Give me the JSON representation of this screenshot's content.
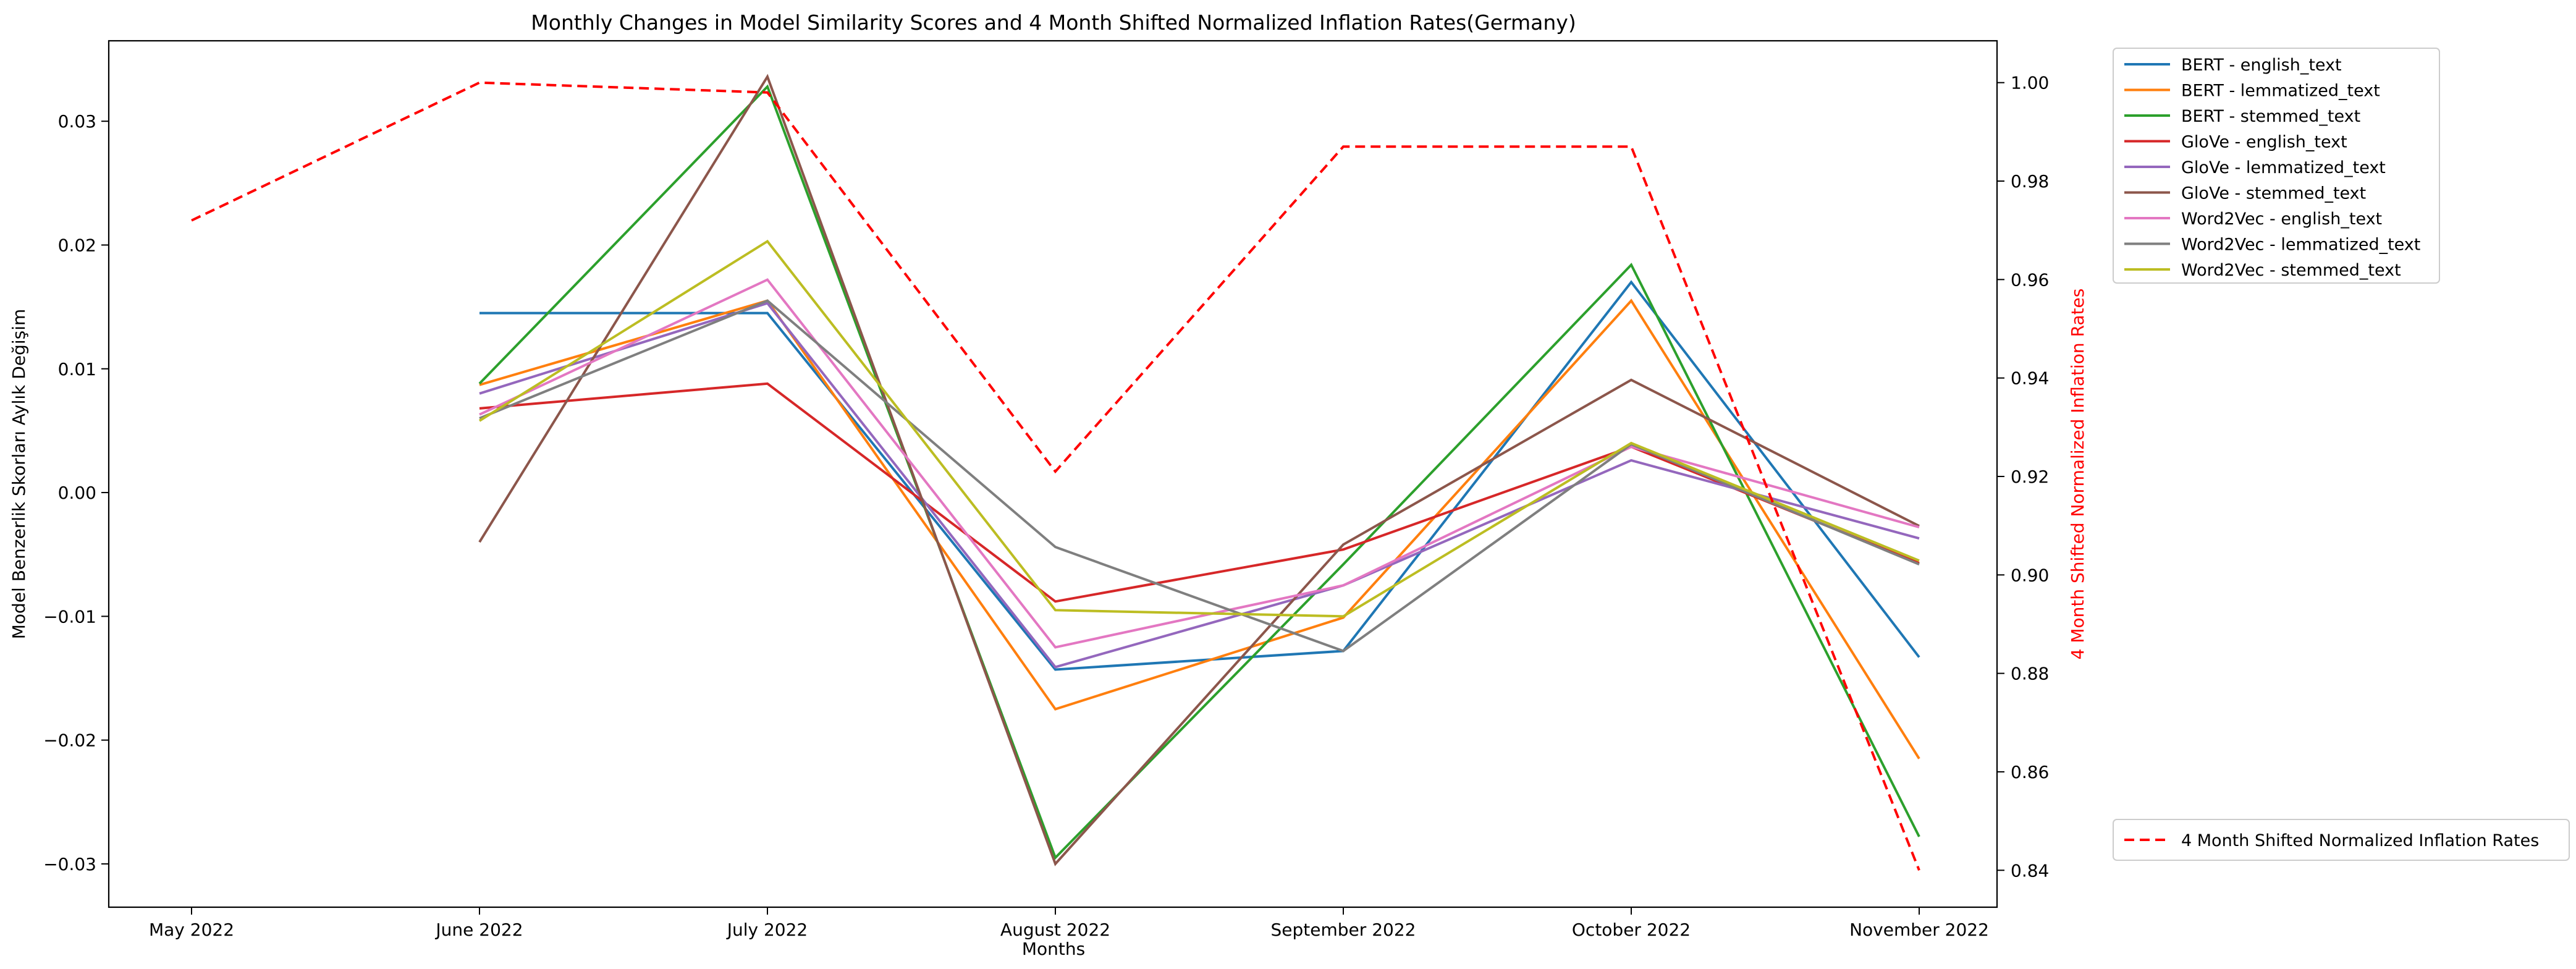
{
  "chart_data": {
    "type": "line",
    "title": "Monthly Changes in Model Similarity Scores and 4 Month Shifted Normalized Inflation Rates(Germany)",
    "xlabel": "Months",
    "ylabel": "Model Benzerlik Skorları Aylık Değişim",
    "ylabel2": "4 Month Shifted Normalized Inflation Rates",
    "categories": [
      "May 2022",
      "June 2022",
      "July 2022",
      "August 2022",
      "September 2022",
      "October 2022",
      "November 2022"
    ],
    "ylim": [
      -0.0335,
      0.0365
    ],
    "yticks": [
      -0.03,
      -0.02,
      -0.01,
      0.0,
      0.01,
      0.02,
      0.03
    ],
    "ytick_labels": [
      "−0.03",
      "−0.02",
      "−0.01",
      "0.00",
      "0.01",
      "0.02",
      "0.03"
    ],
    "y2lim": [
      0.8325,
      1.0085
    ],
    "y2ticks": [
      0.84,
      0.86,
      0.88,
      0.9,
      0.92,
      0.94,
      0.96,
      0.98,
      1.0
    ],
    "y2tick_labels": [
      "0.84",
      "0.86",
      "0.88",
      "0.90",
      "0.92",
      "0.94",
      "0.96",
      "0.98",
      "1.00"
    ],
    "series": [
      {
        "name": "BERT - english_text",
        "color": "#1f77b4",
        "values": [
          null,
          0.0145,
          0.0145,
          -0.0143,
          -0.0128,
          0.017,
          -0.0133
        ]
      },
      {
        "name": "BERT - lemmatized_text",
        "color": "#ff7f0e",
        "values": [
          null,
          0.0087,
          0.0155,
          -0.0175,
          -0.0101,
          0.0155,
          -0.0215
        ]
      },
      {
        "name": "BERT - stemmed_text",
        "color": "#2ca02c",
        "values": [
          null,
          0.0088,
          0.0328,
          -0.0295,
          -0.0058,
          0.0184,
          -0.0278
        ]
      },
      {
        "name": "GloVe - english_text",
        "color": "#d62728",
        "values": [
          null,
          0.0068,
          0.0088,
          -0.0088,
          -0.0046,
          0.0037,
          -0.0057
        ]
      },
      {
        "name": "GloVe - lemmatized_text",
        "color": "#9467bd",
        "values": [
          null,
          0.008,
          0.0153,
          -0.0141,
          -0.0075,
          0.0026,
          -0.0037
        ]
      },
      {
        "name": "GloVe - stemmed_text",
        "color": "#8c564b",
        "values": [
          null,
          -0.004,
          0.0336,
          -0.03,
          -0.0042,
          0.0091,
          -0.0027
        ]
      },
      {
        "name": "Word2Vec - english_text",
        "color": "#e377c2",
        "values": [
          null,
          0.0063,
          0.0172,
          -0.0125,
          -0.0075,
          0.0037,
          -0.0028
        ]
      },
      {
        "name": "Word2Vec - lemmatized_text",
        "color": "#7f7f7f",
        "values": [
          null,
          0.006,
          0.0155,
          -0.0044,
          -0.0128,
          0.0039,
          -0.0058
        ]
      },
      {
        "name": "Word2Vec - stemmed_text",
        "color": "#bcbd22",
        "values": [
          null,
          0.0058,
          0.0203,
          -0.0095,
          -0.01,
          0.004,
          -0.0055
        ]
      }
    ],
    "secondary_series": {
      "name": "4 Month Shifted Normalized Inflation Rates",
      "color": "#ff0000",
      "style": "dashed",
      "values": [
        0.972,
        1.0,
        0.998,
        0.921,
        0.987,
        0.987,
        0.84
      ]
    },
    "legend_position": "outside right",
    "secondary_legend_position": "outside lower right",
    "grid": false
  }
}
